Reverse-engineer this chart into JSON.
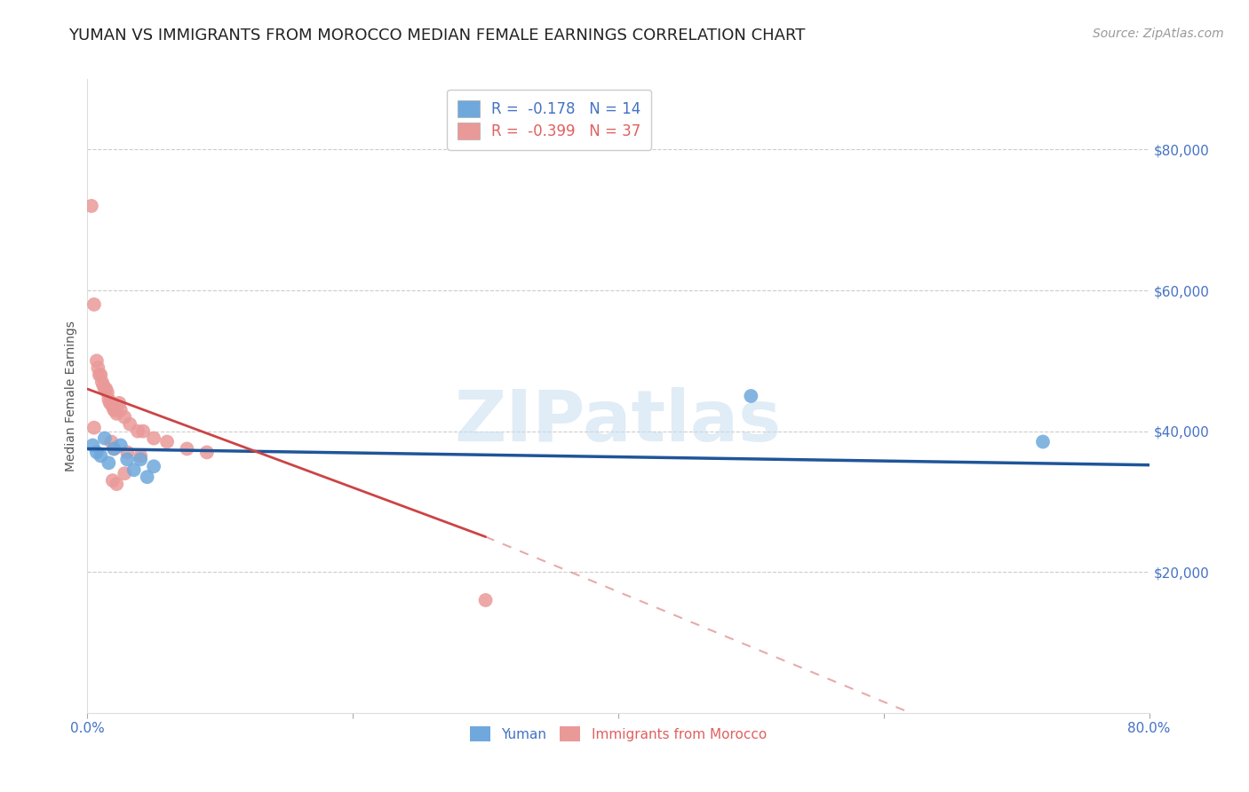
{
  "title": "YUMAN VS IMMIGRANTS FROM MOROCCO MEDIAN FEMALE EARNINGS CORRELATION CHART",
  "source": "Source: ZipAtlas.com",
  "ylabel": "Median Female Earnings",
  "yticks": [
    20000,
    40000,
    60000,
    80000
  ],
  "ytick_labels": [
    "$20,000",
    "$40,000",
    "$60,000",
    "$80,000"
  ],
  "xlim": [
    0.0,
    0.8
  ],
  "ylim": [
    0,
    90000
  ],
  "watermark": "ZIPatlas",
  "legend_blue_r": "R =  -0.178",
  "legend_blue_n": "N = 14",
  "legend_pink_r": "R =  -0.399",
  "legend_pink_n": "N = 37",
  "legend_bottom_blue": "Yuman",
  "legend_bottom_pink": "Immigrants from Morocco",
  "blue_color": "#6fa8dc",
  "pink_color": "#ea9999",
  "blue_line_color": "#1f5599",
  "pink_line_color": "#cc4444",
  "blue_scatter": [
    [
      0.004,
      38000
    ],
    [
      0.007,
      37000
    ],
    [
      0.01,
      36500
    ],
    [
      0.013,
      39000
    ],
    [
      0.016,
      35500
    ],
    [
      0.02,
      37500
    ],
    [
      0.025,
      38000
    ],
    [
      0.03,
      36000
    ],
    [
      0.035,
      34500
    ],
    [
      0.04,
      36000
    ],
    [
      0.045,
      33500
    ],
    [
      0.05,
      35000
    ],
    [
      0.5,
      45000
    ],
    [
      0.72,
      38500
    ]
  ],
  "pink_scatter": [
    [
      0.003,
      72000
    ],
    [
      0.005,
      58000
    ],
    [
      0.007,
      50000
    ],
    [
      0.008,
      49000
    ],
    [
      0.009,
      48000
    ],
    [
      0.01,
      48000
    ],
    [
      0.011,
      47000
    ],
    [
      0.012,
      46500
    ],
    [
      0.013,
      46000
    ],
    [
      0.014,
      46000
    ],
    [
      0.015,
      45500
    ],
    [
      0.016,
      44500
    ],
    [
      0.017,
      44000
    ],
    [
      0.018,
      44000
    ],
    [
      0.019,
      43500
    ],
    [
      0.02,
      43000
    ],
    [
      0.021,
      43000
    ],
    [
      0.022,
      42500
    ],
    [
      0.025,
      43000
    ],
    [
      0.028,
      42000
    ],
    [
      0.032,
      41000
    ],
    [
      0.038,
      40000
    ],
    [
      0.042,
      40000
    ],
    [
      0.05,
      39000
    ],
    [
      0.06,
      38500
    ],
    [
      0.075,
      37500
    ],
    [
      0.09,
      37000
    ],
    [
      0.005,
      40500
    ],
    [
      0.024,
      44000
    ],
    [
      0.018,
      38500
    ],
    [
      0.02,
      37500
    ],
    [
      0.03,
      37000
    ],
    [
      0.04,
      36500
    ],
    [
      0.019,
      33000
    ],
    [
      0.022,
      32500
    ],
    [
      0.028,
      34000
    ],
    [
      0.3,
      16000
    ]
  ],
  "blue_line": [
    [
      0.0,
      37500
    ],
    [
      0.8,
      35200
    ]
  ],
  "pink_line_solid": [
    [
      0.0,
      46000
    ],
    [
      0.3,
      25000
    ]
  ],
  "pink_line_dashed": [
    [
      0.3,
      25000
    ],
    [
      0.62,
      0
    ]
  ],
  "grid_color": "#cccccc",
  "background_color": "#ffffff",
  "title_fontsize": 13,
  "axis_label_fontsize": 10,
  "tick_fontsize": 11,
  "source_fontsize": 10
}
